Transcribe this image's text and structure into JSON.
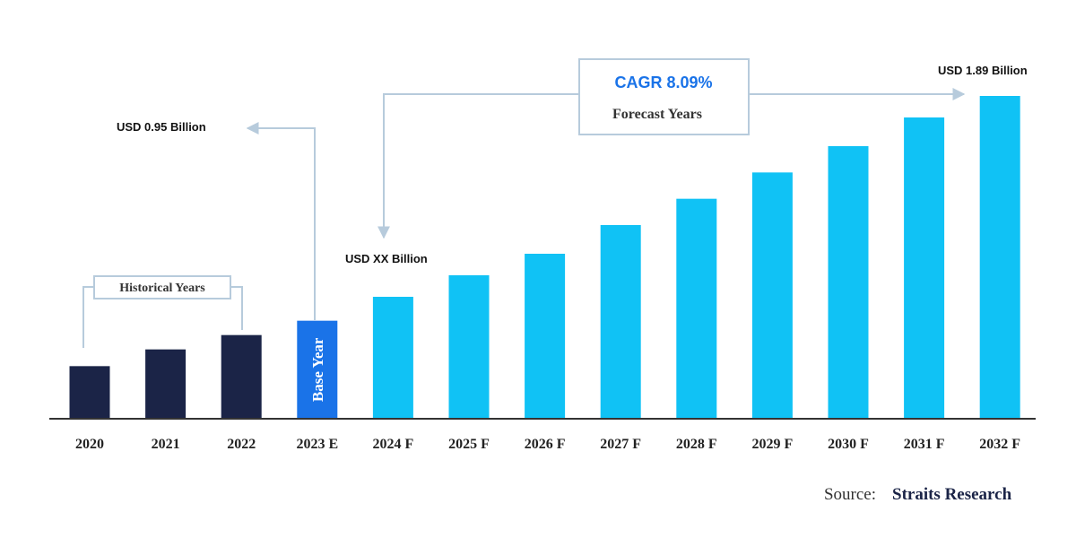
{
  "chart_data": {
    "type": "bar",
    "categories": [
      "2020",
      "2021",
      "2022",
      "2023 E",
      "2024 F",
      "2025 F",
      "2026 F",
      "2027 F",
      "2028 F",
      "2029 F",
      "2030 F",
      "2031 F",
      "2032 F"
    ],
    "values": [
      0.76,
      0.83,
      0.89,
      0.95,
      1.05,
      1.14,
      1.23,
      1.35,
      1.46,
      1.57,
      1.68,
      1.8,
      1.89
    ],
    "colors": [
      "#1b2447",
      "#1b2447",
      "#1b2447",
      "#1a73e8",
      "#10c2f5",
      "#10c2f5",
      "#10c2f5",
      "#10c2f5",
      "#10c2f5",
      "#10c2f5",
      "#10c2f5",
      "#10c2f5",
      "#10c2f5"
    ],
    "ylim": [
      0.54,
      1.89
    ],
    "base_year_label": "Base Year",
    "historical_label": "Historical Years",
    "cagr_label": "CAGR 8.09%",
    "forecast_label": "Forecast Years",
    "annotation_2023": "USD 0.95 Billion",
    "annotation_2024": "USD XX Billion",
    "annotation_2032": "USD 1.89 Billion",
    "source_label": "Source:",
    "source_name": "Straits Research"
  }
}
